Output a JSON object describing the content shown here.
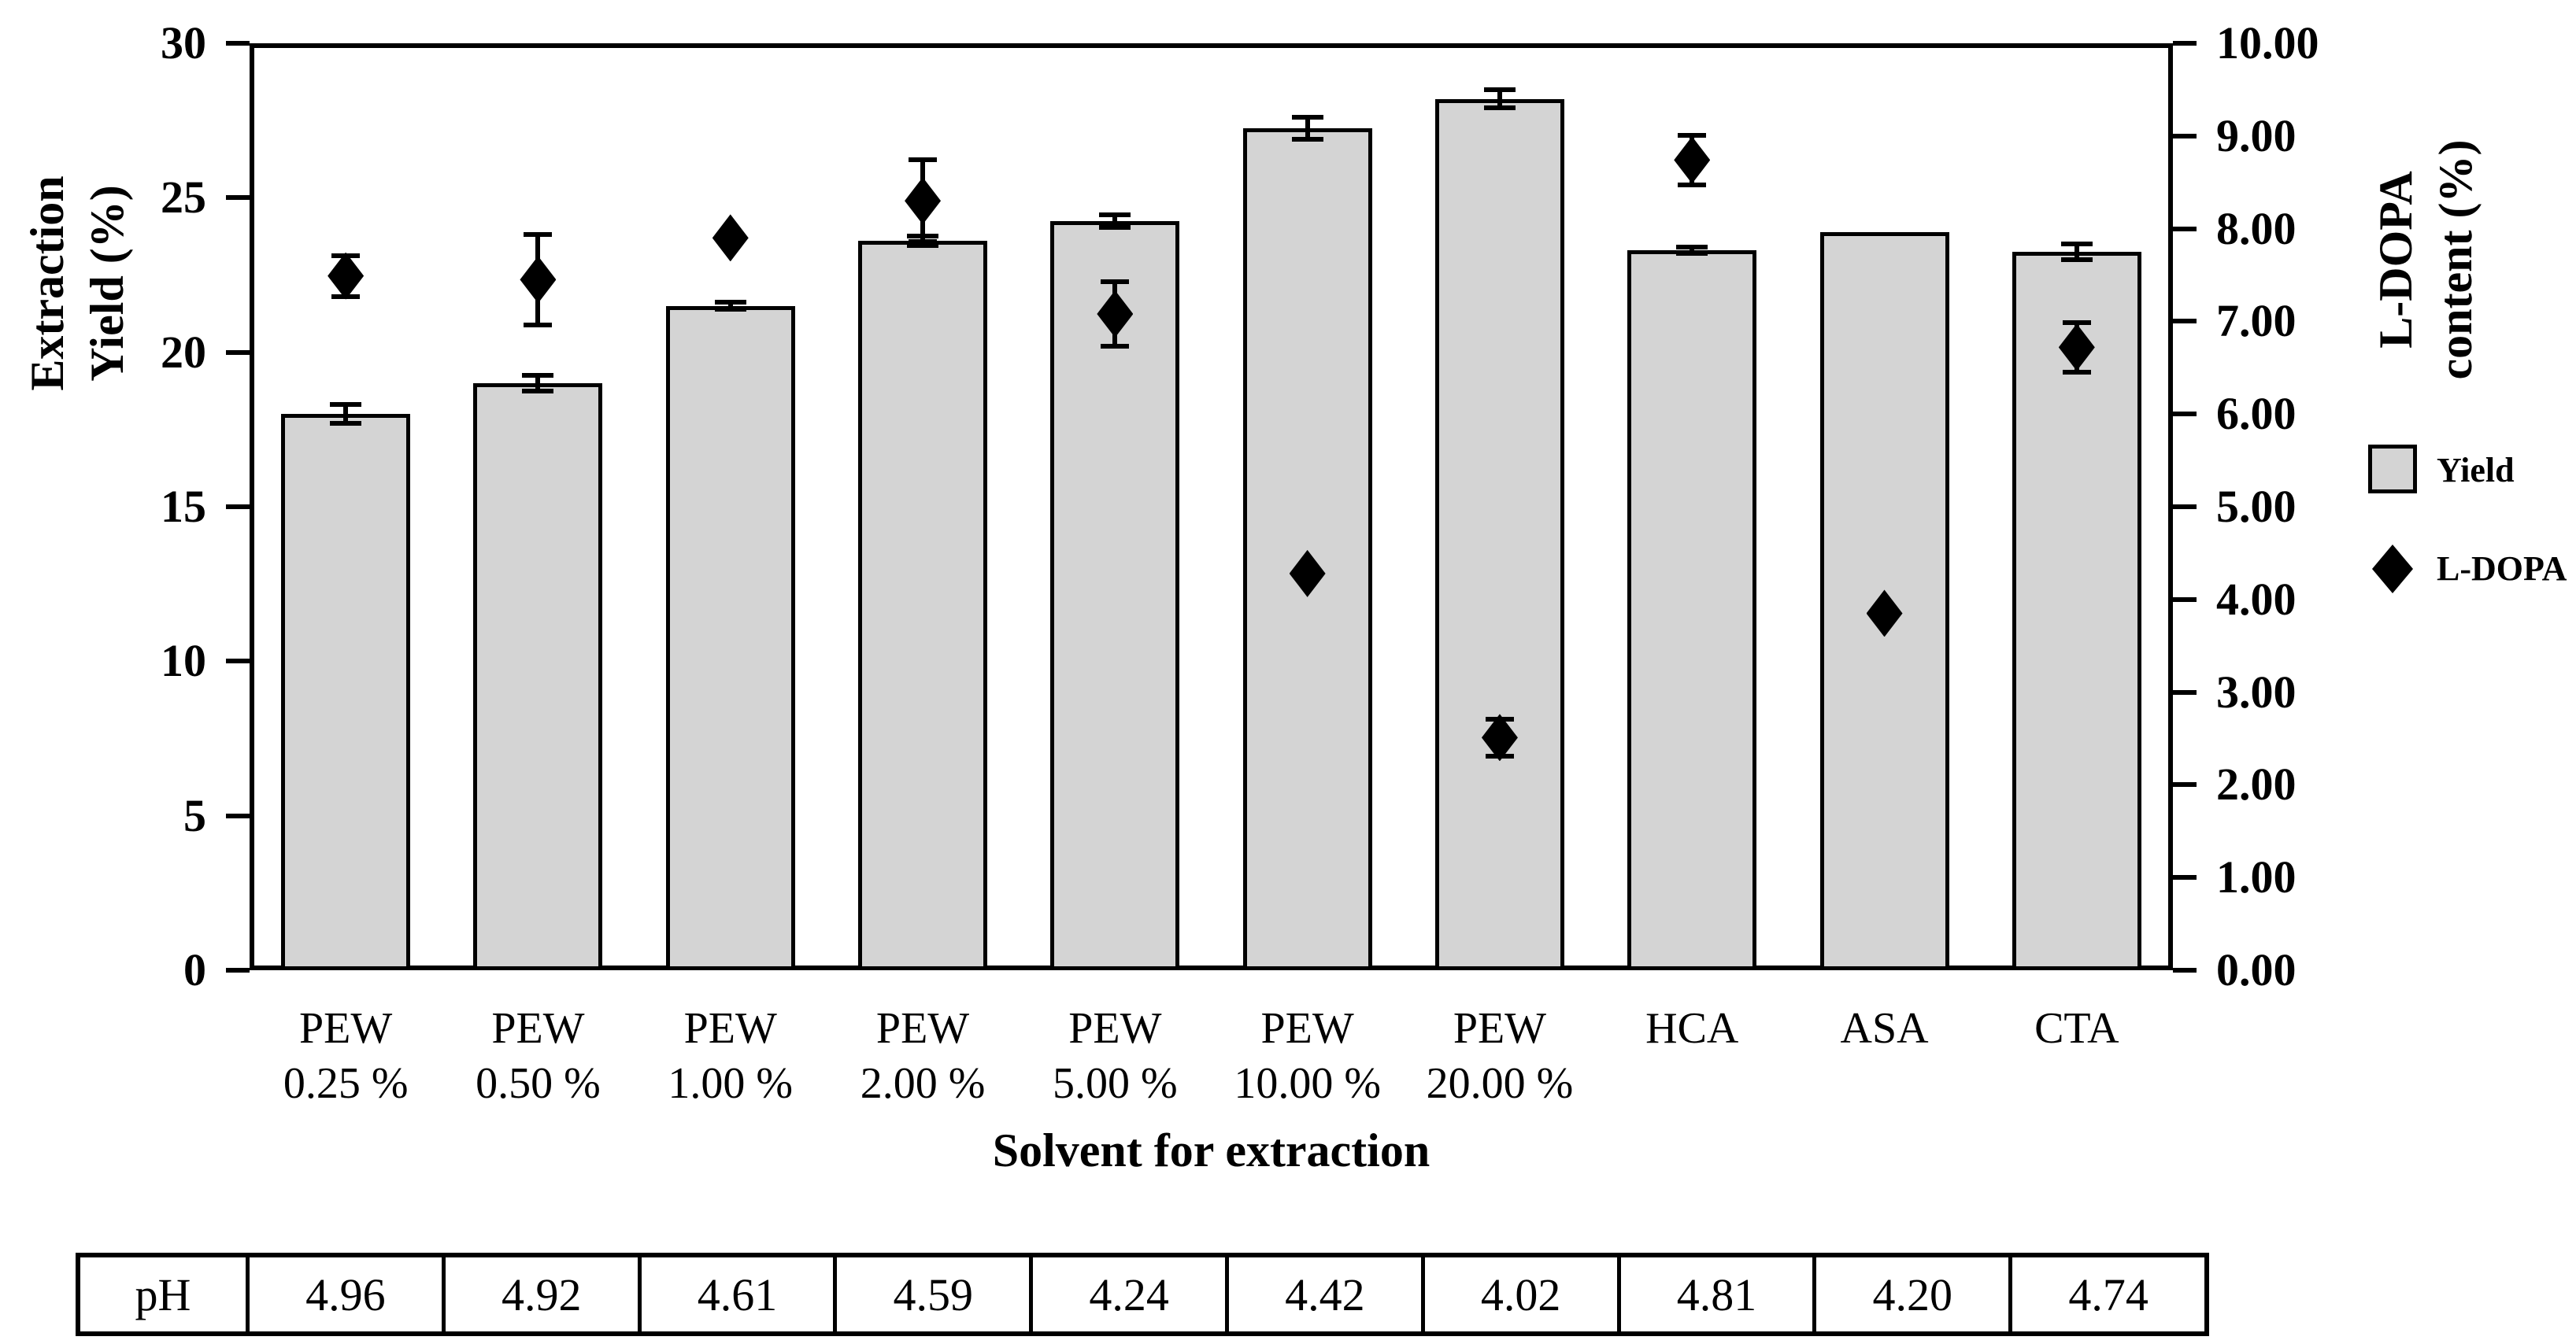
{
  "figure": {
    "left_axis": {
      "title_lines": [
        "Extraction",
        "Yield (%)"
      ],
      "tick_labels": [
        "30",
        "25",
        "20",
        "15",
        "10",
        "5",
        "0"
      ],
      "tick_values": [
        30,
        25,
        20,
        15,
        10,
        5,
        0
      ],
      "min": 0,
      "max": 30
    },
    "right_axis": {
      "title_lines": [
        "L-DOPA",
        "content (%)"
      ],
      "tick_labels": [
        "10.00",
        "9.00",
        "8.00",
        "7.00",
        "6.00",
        "5.00",
        "4.00",
        "3.00",
        "2.00",
        "1.00",
        "0.00"
      ],
      "tick_values": [
        10,
        9,
        8,
        7,
        6,
        5,
        4,
        3,
        2,
        1,
        0
      ],
      "min": 0,
      "max": 10
    },
    "x_axis": {
      "title": "Solvent for extraction"
    },
    "legend": [
      {
        "label": "Yield",
        "marker": "square"
      },
      {
        "label": "L-DOPA",
        "marker": "diamond"
      }
    ],
    "colors": {
      "bar_fill": "#d4d4d4",
      "bar_border": "#000000",
      "marker": "#000000",
      "background": "#ffffff"
    }
  },
  "chart_data": {
    "type": "bar",
    "categories": [
      [
        "PEW",
        "0.25 %"
      ],
      [
        "PEW",
        "0.50 %"
      ],
      [
        "PEW",
        "1.00 %"
      ],
      [
        "PEW",
        "2.00 %"
      ],
      [
        "PEW",
        "5.00 %"
      ],
      [
        "PEW",
        "10.00 %"
      ],
      [
        "PEW",
        "20.00 %"
      ],
      [
        "HCA"
      ],
      [
        "ASA"
      ],
      [
        "CTA"
      ]
    ],
    "series": [
      {
        "name": "Yield",
        "type": "bar",
        "axis": "left",
        "values": [
          18.0,
          19.0,
          21.5,
          23.6,
          24.25,
          27.25,
          28.2,
          23.3,
          23.9,
          23.25
        ],
        "errors": [
          0.3,
          0.25,
          0.12,
          0.15,
          0.2,
          0.35,
          0.3,
          0.1,
          0,
          0.25
        ]
      },
      {
        "name": "L-DOPA",
        "type": "scatter",
        "marker": "diamond",
        "axis": "right",
        "values": [
          7.49,
          7.45,
          7.9,
          8.3,
          7.08,
          4.28,
          2.51,
          8.74,
          3.85,
          6.72
        ],
        "errors": [
          0.22,
          0.49,
          0.1,
          0.44,
          0.35,
          0.08,
          0.2,
          0.27,
          0.07,
          0.27
        ]
      }
    ],
    "title": "",
    "xlabel": "Solvent for extraction",
    "ylabel_left": "Extraction Yield (%)",
    "ylabel_right": "L-DOPA content (%)",
    "left_ylim": [
      0,
      30
    ],
    "right_ylim": [
      0,
      10
    ],
    "grid": false,
    "legend_position": "right"
  },
  "ph_table": {
    "header": "pH",
    "values": [
      "4.96",
      "4.92",
      "4.61",
      "4.59",
      "4.24",
      "4.42",
      "4.02",
      "4.81",
      "4.20",
      "4.74"
    ]
  }
}
